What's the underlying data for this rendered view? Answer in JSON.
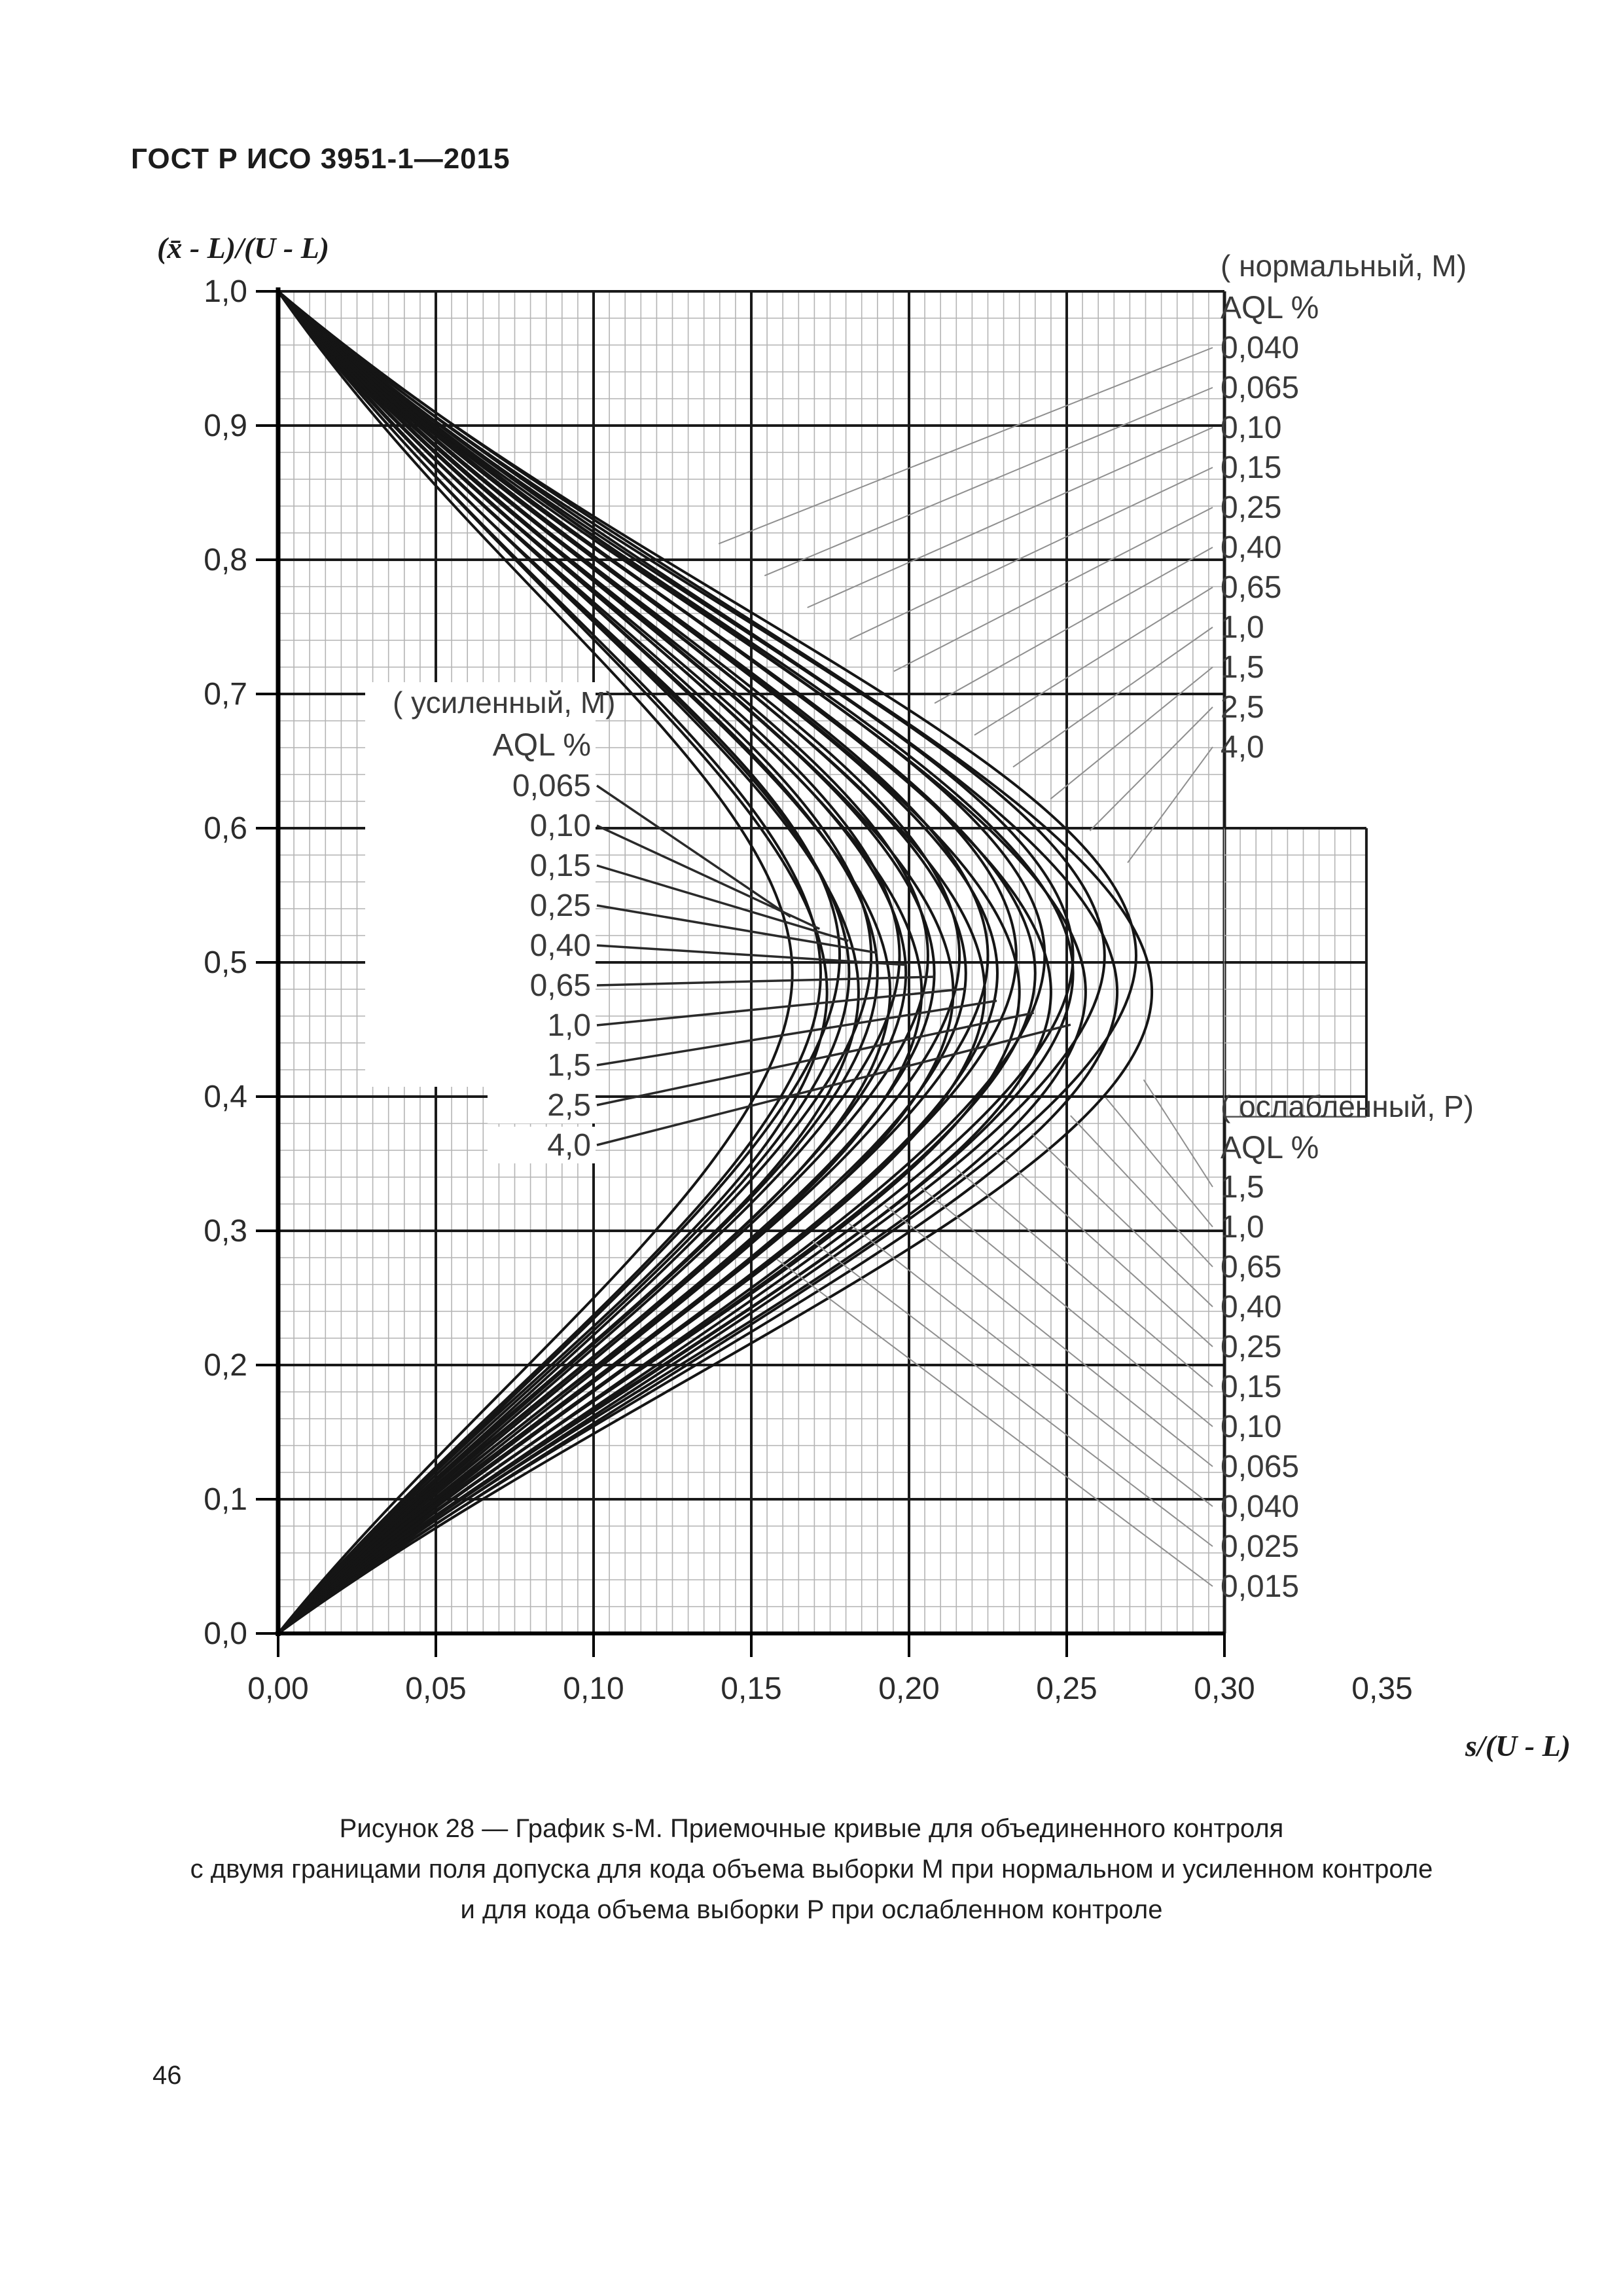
{
  "page": {
    "header": "ГОСТ Р ИСО 3951-1—2015",
    "page_number": "46"
  },
  "caption": {
    "line1": "Рисунок 28 — График s-M. Приемочные кривые для объединенного контроля",
    "line2": "с двумя границами поля допуска для кода объема выборки M при нормальном и усиленном контроле",
    "line3": "и для кода объема выборки P при ослабленном контроле"
  },
  "chart_data": {
    "type": "line",
    "title": "",
    "xlabel": "s/(U - L)",
    "ylabel": "(x̄ - L)/(U - L)",
    "xlim": [
      0,
      0.35
    ],
    "ylim": [
      0,
      1.0
    ],
    "grid": {
      "x_minor": 0.005,
      "x_major": 0.05,
      "y_minor": 0.02,
      "y_major": 0.1,
      "x_grid_end": 0.3
    },
    "grid_extension": {
      "x": [
        0.3,
        0.345
      ],
      "y": [
        0.385,
        0.6
      ]
    },
    "x_ticks": {
      "values": [
        0.0,
        0.05,
        0.1,
        0.15,
        0.2,
        0.25,
        0.3
      ],
      "labels": [
        "0,00",
        "0,05",
        "0,10",
        "0,15",
        "0,20",
        "0,25",
        "0,30"
      ],
      "extra_label": "0,35",
      "extra_value": 0.35
    },
    "y_ticks": {
      "values": [
        1.0,
        0.9,
        0.8,
        0.7,
        0.6,
        0.5,
        0.4,
        0.3,
        0.2,
        0.1,
        0.0
      ],
      "labels": [
        "1,0",
        "0,9",
        "0,8",
        "0,7",
        "0,6",
        "0,5",
        "0,4",
        "0,3",
        "0,2",
        "0,1",
        "0,0"
      ]
    },
    "groups": [
      {
        "id": "normal-M",
        "header": "( нормальный,  M)",
        "sub_header": "AQL %",
        "aql_labels": [
          "0,040",
          "0,065",
          "0,10",
          "0,15",
          "0,25",
          "0,40",
          "0,65",
          "1,0",
          "1,5",
          "2,5",
          "4,0"
        ],
        "aql_values": [
          0.04,
          0.065,
          0.1,
          0.15,
          0.25,
          0.4,
          0.65,
          1.0,
          1.5,
          2.5,
          4.0
        ],
        "curves_start": [
          0,
          1.0
        ],
        "curves_end": [
          0,
          0.0
        ],
        "apex_x": [
          0.178,
          0.188,
          0.197,
          0.206,
          0.216,
          0.225,
          0.234,
          0.243,
          0.252,
          0.262,
          0.272
        ],
        "apex_y": 0.505
      },
      {
        "id": "tightened-M",
        "header": "( усиленный,  M)",
        "sub_header": "AQL %",
        "aql_labels": [
          "0,065",
          "0,10",
          "0,15",
          "0,25",
          "0,40",
          "0,65",
          "1,0",
          "1,5",
          "2,5",
          "4,0"
        ],
        "aql_values": [
          0.065,
          0.1,
          0.15,
          0.25,
          0.4,
          0.65,
          1.0,
          1.5,
          2.5,
          4.0
        ],
        "curves_start": [
          0,
          1.0
        ],
        "curves_end": [
          0,
          0.0
        ],
        "apex_x": [
          0.163,
          0.172,
          0.181,
          0.19,
          0.199,
          0.208,
          0.218,
          0.228,
          0.24,
          0.252
        ],
        "apex_y": 0.492
      },
      {
        "id": "reduced-P",
        "header": "( ослабленный,  P)",
        "sub_header": "AQL %",
        "aql_labels": [
          "1,5",
          "1,0",
          "0,65",
          "0,40",
          "0,25",
          "0,15",
          "0,10",
          "0,065",
          "0,040",
          "0,025",
          "0,015"
        ],
        "aql_values": [
          1.5,
          1.0,
          0.65,
          0.4,
          0.25,
          0.15,
          0.1,
          0.065,
          0.04,
          0.025,
          0.015
        ],
        "curves_start": [
          0,
          1.0
        ],
        "curves_end": [
          0,
          0.0
        ],
        "apex_x": [
          0.277,
          0.266,
          0.256,
          0.245,
          0.235,
          0.224,
          0.214,
          0.204,
          0.194,
          0.184,
          0.174
        ],
        "apex_y": 0.478
      }
    ],
    "colors": {
      "curve": "#151515",
      "grid_minor": "#b4b4b4",
      "grid_major": "#1a1a1a",
      "axis": "#000000",
      "leader_gray": "#8f8f8f",
      "leader_dark": "#2a2a2a",
      "label_text": "#3a3a3a",
      "tick_text": "#2b2b2b"
    },
    "legend_position": "right"
  }
}
